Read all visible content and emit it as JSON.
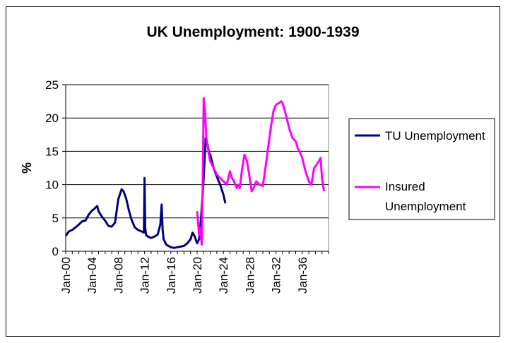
{
  "chart_data": {
    "type": "line",
    "title": "UK Unemployment: 1900-1939",
    "xlabel": "",
    "ylabel": "%",
    "ylim": [
      0,
      25
    ],
    "yticks": [
      0,
      5,
      10,
      15,
      20,
      25
    ],
    "xlim": [
      1900,
      1940
    ],
    "xticks": [
      {
        "label": "Jan-00",
        "x": 1900
      },
      {
        "label": "Jan-04",
        "x": 1904
      },
      {
        "label": "Jan-08",
        "x": 1908
      },
      {
        "label": "Jan-12",
        "x": 1912
      },
      {
        "label": "Jan-16",
        "x": 1916
      },
      {
        "label": "Jan-20",
        "x": 1920
      },
      {
        "label": "Jan-24",
        "x": 1924
      },
      {
        "label": "Jan-28",
        "x": 1928
      },
      {
        "label": "Jan-32",
        "x": 1932
      },
      {
        "label": "Jan-36",
        "x": 1936
      }
    ],
    "grid": true,
    "legend_position": "right",
    "series": [
      {
        "name": "TU Unemployment",
        "color": "#000080",
        "x": [
          1900.0,
          1900.5,
          1901.0,
          1901.5,
          1902.0,
          1902.5,
          1903.0,
          1903.5,
          1904.0,
          1904.4,
          1904.8,
          1905.0,
          1905.5,
          1906.0,
          1906.5,
          1907.0,
          1907.5,
          1908.0,
          1908.5,
          1908.8,
          1909.2,
          1909.6,
          1910.0,
          1910.5,
          1911.0,
          1911.5,
          1911.9,
          1912.0,
          1912.1,
          1912.25,
          1912.5,
          1913.0,
          1913.5,
          1914.0,
          1914.4,
          1914.6,
          1914.75,
          1914.9,
          1915.3,
          1916.0,
          1916.5,
          1917.0,
          1917.5,
          1918.0,
          1918.5,
          1919.0,
          1919.3,
          1919.6,
          1920.0,
          1920.3,
          1920.6,
          1921.0,
          1921.3,
          1921.6,
          1921.8,
          1922.0,
          1922.5,
          1923.0,
          1923.5,
          1924.0,
          1924.3
        ],
        "y": [
          2.3,
          3.0,
          3.2,
          3.6,
          4.0,
          4.5,
          4.6,
          5.5,
          6.1,
          6.4,
          6.8,
          6.0,
          5.2,
          4.6,
          3.8,
          3.7,
          4.3,
          7.8,
          9.3,
          9.0,
          7.9,
          6.2,
          4.8,
          3.6,
          3.2,
          3.0,
          2.8,
          11.0,
          3.5,
          2.4,
          2.2,
          2.0,
          2.2,
          2.5,
          4.0,
          7.0,
          3.2,
          1.8,
          1.0,
          0.6,
          0.5,
          0.6,
          0.7,
          0.8,
          1.2,
          1.8,
          2.8,
          2.3,
          1.2,
          1.8,
          5.0,
          11.0,
          17.0,
          16.0,
          14.8,
          14.5,
          12.5,
          11.2,
          10.0,
          8.5,
          7.2
        ]
      },
      {
        "name": "Insured Unemployment",
        "color": "#ff00ff",
        "x": [
          1920.0,
          1920.3,
          1920.5,
          1920.7,
          1920.8,
          1920.9,
          1921.0,
          1921.2,
          1921.4,
          1921.5,
          1921.7,
          1922.0,
          1922.5,
          1923.0,
          1923.5,
          1924.0,
          1924.5,
          1925.0,
          1925.3,
          1925.6,
          1926.0,
          1926.3,
          1926.5,
          1926.8,
          1927.2,
          1927.6,
          1928.0,
          1928.3,
          1928.6,
          1929.0,
          1929.5,
          1930.0,
          1930.4,
          1930.8,
          1931.2,
          1931.6,
          1932.0,
          1932.4,
          1932.8,
          1933.0,
          1933.5,
          1934.0,
          1934.5,
          1935.0,
          1935.3,
          1935.6,
          1936.0,
          1936.5,
          1937.0,
          1937.4,
          1937.8,
          1938.2,
          1938.5,
          1938.8,
          1939.0,
          1939.3
        ],
        "y": [
          6.0,
          2.5,
          3.5,
          1.0,
          7.0,
          14.0,
          23.0,
          21.0,
          17.0,
          16.5,
          15.0,
          13.5,
          12.5,
          11.5,
          11.0,
          10.5,
          10.0,
          12.0,
          11.0,
          10.5,
          9.5,
          10.0,
          9.5,
          12.0,
          14.5,
          13.5,
          11.0,
          9.0,
          9.5,
          10.5,
          10.0,
          9.8,
          12.5,
          15.5,
          18.5,
          21.0,
          22.0,
          22.2,
          22.5,
          22.3,
          20.5,
          18.5,
          17.0,
          16.5,
          15.5,
          15.0,
          14.0,
          12.0,
          10.5,
          10.0,
          12.5,
          13.0,
          13.5,
          14.0,
          11.0,
          9.0
        ]
      }
    ]
  }
}
